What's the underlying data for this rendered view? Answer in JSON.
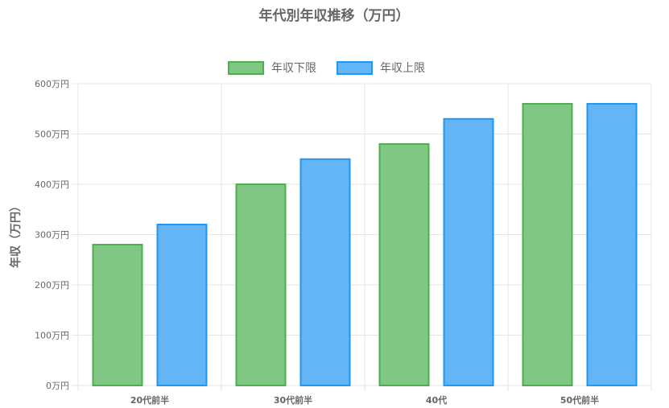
{
  "chart_data": {
    "type": "bar",
    "title": "年代別年収推移（万円）",
    "ylabel": "年収（万円）",
    "xlabel": "",
    "categories": [
      "20代前半",
      "30代前半",
      "40代",
      "50代前半"
    ],
    "series": [
      {
        "name": "年収下限",
        "values": [
          280,
          400,
          480,
          560
        ],
        "color": "#81c784",
        "border": "#4caf50"
      },
      {
        "name": "年収上限",
        "values": [
          320,
          450,
          530,
          560
        ],
        "color": "#64b5f6",
        "border": "#2196f3"
      }
    ],
    "ylim": [
      0,
      600
    ],
    "yticks": [
      0,
      100,
      200,
      300,
      400,
      500,
      600
    ],
    "ytick_suffix": "万円",
    "grid": true,
    "legend": "top"
  }
}
